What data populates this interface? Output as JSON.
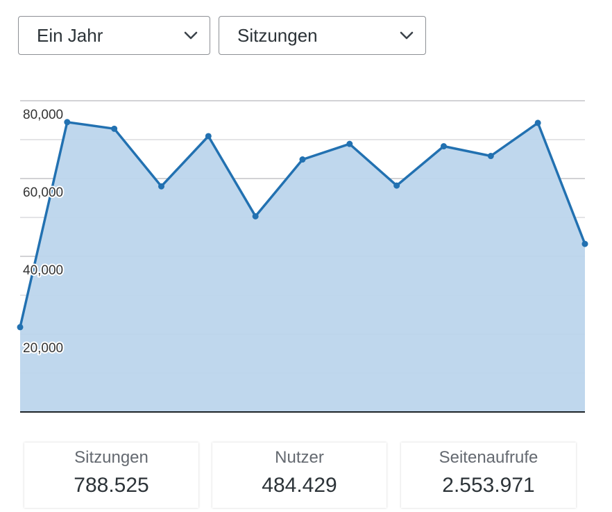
{
  "controls": {
    "range": {
      "label": "Ein Jahr"
    },
    "metric": {
      "label": "Sitzungen"
    }
  },
  "chart_data": {
    "type": "area",
    "x": [
      1,
      2,
      3,
      4,
      5,
      6,
      7,
      8,
      9,
      10,
      11,
      12,
      13
    ],
    "values": [
      21800,
      74500,
      72800,
      58000,
      70900,
      50300,
      64900,
      68900,
      58200,
      68300,
      65800,
      74300,
      43200
    ],
    "ylim": [
      0,
      80000
    ],
    "y_ticks": [
      20000,
      40000,
      60000,
      80000
    ],
    "y_tick_labels": [
      "20,000",
      "40,000",
      "60,000",
      "80,000"
    ],
    "grid": true,
    "line_color": "#2271b1",
    "fill_color": "#bcd5ec"
  },
  "stats": {
    "sessions": {
      "label": "Sitzungen",
      "value": "788.525"
    },
    "users": {
      "label": "Nutzer",
      "value": "484.429"
    },
    "pageviews": {
      "label": "Seitenaufrufe",
      "value": "2.553.971"
    }
  }
}
